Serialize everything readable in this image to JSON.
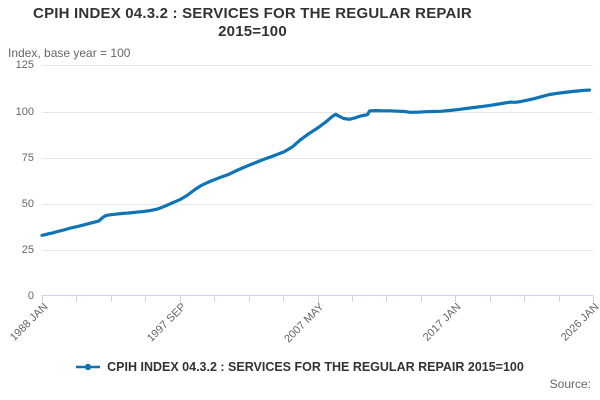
{
  "header": {
    "title": "CPIH INDEX 04.3.2 : SERVICES FOR THE REGULAR REPAIR 2015=100",
    "subtitle": "Index, base year = 100"
  },
  "legend": {
    "label": "CPIH INDEX 04.3.2 : SERVICES FOR THE REGULAR REPAIR 2015=100"
  },
  "footer": {
    "source_label": "Source:"
  },
  "colors": {
    "line": "#0f74b6",
    "grid": "#e6e6e6",
    "axis": "#ccd6eb",
    "title_text": "#333333",
    "muted_text": "#666666"
  },
  "chart_data": {
    "type": "line",
    "title": "CPIH INDEX 04.3.2 : SERVICES FOR THE REGULAR REPAIR 2015=100",
    "ylabel": "Index, base year = 100",
    "ylim": [
      0,
      125
    ],
    "y_ticks": [
      0,
      25,
      50,
      75,
      100,
      125
    ],
    "x_range": [
      1988,
      2026
    ],
    "x_minor_tick_count": 17,
    "x_label_every": 4,
    "x_tick_labels": [
      "1988 JAN",
      "1997 SEP",
      "2007 MAY",
      "2017 JAN",
      "2026 JAN"
    ],
    "grid": true,
    "legend_position": "bottom",
    "series": [
      {
        "name": "CPIH INDEX 04.3.2 : SERVICES FOR THE REGULAR REPAIR 2015=100",
        "color": "#0f74b6",
        "points": [
          [
            1988.0,
            32.9
          ],
          [
            1988.25,
            33.3
          ],
          [
            1988.5,
            33.8
          ],
          [
            1988.75,
            34.2
          ],
          [
            1989.0,
            34.8
          ],
          [
            1989.5,
            35.8
          ],
          [
            1990.0,
            36.9
          ],
          [
            1990.5,
            37.8
          ],
          [
            1991.0,
            38.8
          ],
          [
            1991.5,
            39.8
          ],
          [
            1991.9,
            40.6
          ],
          [
            1992.2,
            42.6
          ],
          [
            1992.4,
            43.6
          ],
          [
            1992.7,
            44.0
          ],
          [
            1993.0,
            44.3
          ],
          [
            1993.5,
            44.7
          ],
          [
            1994.0,
            45.0
          ],
          [
            1994.5,
            45.4
          ],
          [
            1995.0,
            45.8
          ],
          [
            1995.5,
            46.4
          ],
          [
            1996.0,
            47.2
          ],
          [
            1996.5,
            48.8
          ],
          [
            1997.0,
            50.5
          ],
          [
            1997.5,
            52.2
          ],
          [
            1998.0,
            54.5
          ],
          [
            1998.6,
            58.0
          ],
          [
            1999.0,
            60.0
          ],
          [
            1999.7,
            62.5
          ],
          [
            2000.3,
            64.3
          ],
          [
            2000.9,
            66.0
          ],
          [
            2001.5,
            68.3
          ],
          [
            2002.0,
            70.0
          ],
          [
            2002.6,
            71.9
          ],
          [
            2003.2,
            73.8
          ],
          [
            2003.8,
            75.5
          ],
          [
            2004.3,
            77.0
          ],
          [
            2004.7,
            78.2
          ],
          [
            2005.3,
            81.0
          ],
          [
            2005.8,
            84.5
          ],
          [
            2006.4,
            88.0
          ],
          [
            2007.0,
            91.0
          ],
          [
            2007.6,
            94.5
          ],
          [
            2008.0,
            97.2
          ],
          [
            2008.25,
            98.5
          ],
          [
            2008.5,
            97.4
          ],
          [
            2008.8,
            96.2
          ],
          [
            2009.2,
            95.8
          ],
          [
            2009.6,
            96.6
          ],
          [
            2010.0,
            97.6
          ],
          [
            2010.45,
            98.4
          ],
          [
            2010.6,
            100.4
          ],
          [
            2011.0,
            100.5
          ],
          [
            2011.5,
            100.4
          ],
          [
            2012.0,
            100.4
          ],
          [
            2012.5,
            100.2
          ],
          [
            2013.0,
            100.0
          ],
          [
            2013.4,
            99.6
          ],
          [
            2014.0,
            99.7
          ],
          [
            2014.5,
            99.9
          ],
          [
            2015.0,
            100.0
          ],
          [
            2015.5,
            100.1
          ],
          [
            2016.0,
            100.5
          ],
          [
            2016.5,
            100.9
          ],
          [
            2017.0,
            101.4
          ],
          [
            2017.5,
            101.9
          ],
          [
            2018.0,
            102.4
          ],
          [
            2018.5,
            102.9
          ],
          [
            2019.0,
            103.4
          ],
          [
            2019.5,
            104.1
          ],
          [
            2020.0,
            104.7
          ],
          [
            2020.3,
            105.1
          ],
          [
            2020.6,
            105.0
          ],
          [
            2021.0,
            105.4
          ],
          [
            2021.5,
            106.2
          ],
          [
            2022.0,
            107.1
          ],
          [
            2022.5,
            108.2
          ],
          [
            2023.0,
            109.2
          ],
          [
            2023.5,
            109.8
          ],
          [
            2024.0,
            110.3
          ],
          [
            2024.5,
            110.8
          ],
          [
            2025.0,
            111.2
          ],
          [
            2025.4,
            111.5
          ],
          [
            2025.75,
            111.6
          ]
        ]
      }
    ]
  }
}
